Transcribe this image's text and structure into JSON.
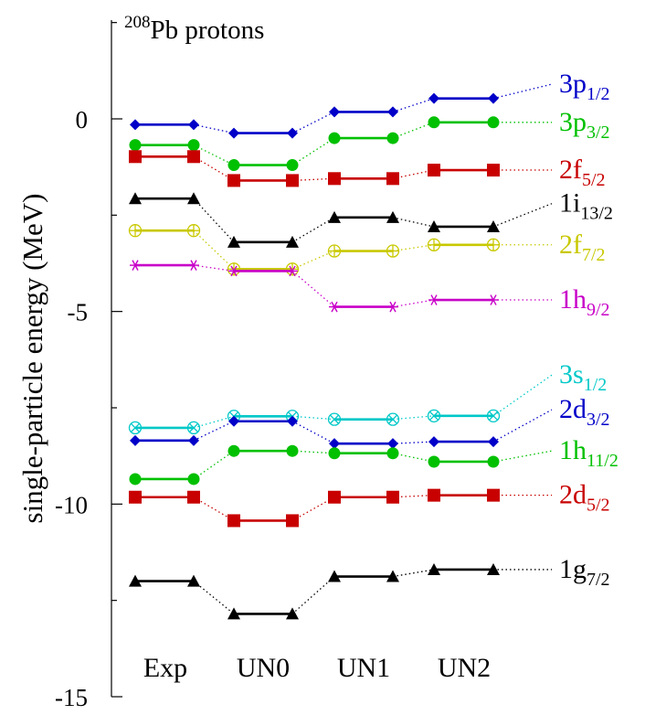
{
  "chart_data": {
    "type": "line",
    "title_prefix": "208",
    "title_main": "Pb protons",
    "ylabel": "single-particle energy (MeV)",
    "ylim": [
      -15,
      2.5
    ],
    "yticks": [
      0,
      -5,
      -10,
      -15
    ],
    "ytick_labels": [
      "0",
      "-5",
      "-10",
      "-15"
    ],
    "categories": [
      "Exp",
      "UN0",
      "UN1",
      "UN2"
    ],
    "grid": false,
    "series": [
      {
        "name": "3p1/2",
        "label_main": "3p",
        "label_sub": "1/2",
        "color": "#0000c8",
        "marker": "diamond",
        "values": [
          -0.15,
          -0.37,
          0.18,
          0.53
        ],
        "label_value": 0.9
      },
      {
        "name": "3p3/2",
        "label_main": "3p",
        "label_sub": "3/2",
        "color": "#00c000",
        "marker": "circle",
        "values": [
          -0.68,
          -1.2,
          -0.5,
          -0.09
        ],
        "label_value": -0.09
      },
      {
        "name": "2f5/2",
        "label_main": "2f",
        "label_sub": "5/2",
        "color": "#c80000",
        "marker": "square",
        "values": [
          -0.98,
          -1.6,
          -1.55,
          -1.33
        ],
        "label_value": -1.33
      },
      {
        "name": "1i13/2",
        "label_main": "1i",
        "label_sub": "13/2",
        "color": "#000000",
        "marker": "triangle",
        "values": [
          -2.07,
          -3.2,
          -2.56,
          -2.8
        ],
        "label_value": -2.2
      },
      {
        "name": "2f7/2",
        "label_main": "2f",
        "label_sub": "7/2",
        "color": "#c8c800",
        "marker": "circle-plus",
        "values": [
          -2.9,
          -3.9,
          -3.43,
          -3.27
        ],
        "label_value": -3.27
      },
      {
        "name": "1h9/2",
        "label_main": "1h",
        "label_sub": "9/2",
        "color": "#c800c8",
        "marker": "star",
        "values": [
          -3.8,
          -3.95,
          -4.88,
          -4.7
        ],
        "label_value": -4.7
      },
      {
        "name": "3s1/2",
        "label_main": "3s",
        "label_sub": "1/2",
        "color": "#00c8c8",
        "marker": "circle-x",
        "values": [
          -8.02,
          -7.72,
          -7.8,
          -7.71
        ],
        "label_value": -6.65
      },
      {
        "name": "2d3/2",
        "label_main": "2d",
        "label_sub": "3/2",
        "color": "#0000c8",
        "marker": "diamond",
        "values": [
          -8.35,
          -7.85,
          -8.43,
          -8.38
        ],
        "label_value": -7.55
      },
      {
        "name": "1h11/2",
        "label_main": "1h",
        "label_sub": "11/2",
        "color": "#00c000",
        "marker": "circle",
        "values": [
          -9.35,
          -8.62,
          -8.68,
          -8.9
        ],
        "label_value": -8.62
      },
      {
        "name": "2d5/2",
        "label_main": "2d",
        "label_sub": "5/2",
        "color": "#c80000",
        "marker": "square",
        "values": [
          -9.82,
          -10.43,
          -9.82,
          -9.77
        ],
        "label_value": -9.77
      },
      {
        "name": "1g7/2",
        "label_main": "1g",
        "label_sub": "7/2",
        "color": "#000000",
        "marker": "triangle",
        "values": [
          -12.0,
          -12.85,
          -11.88,
          -11.7
        ],
        "label_value": -11.7
      }
    ]
  }
}
